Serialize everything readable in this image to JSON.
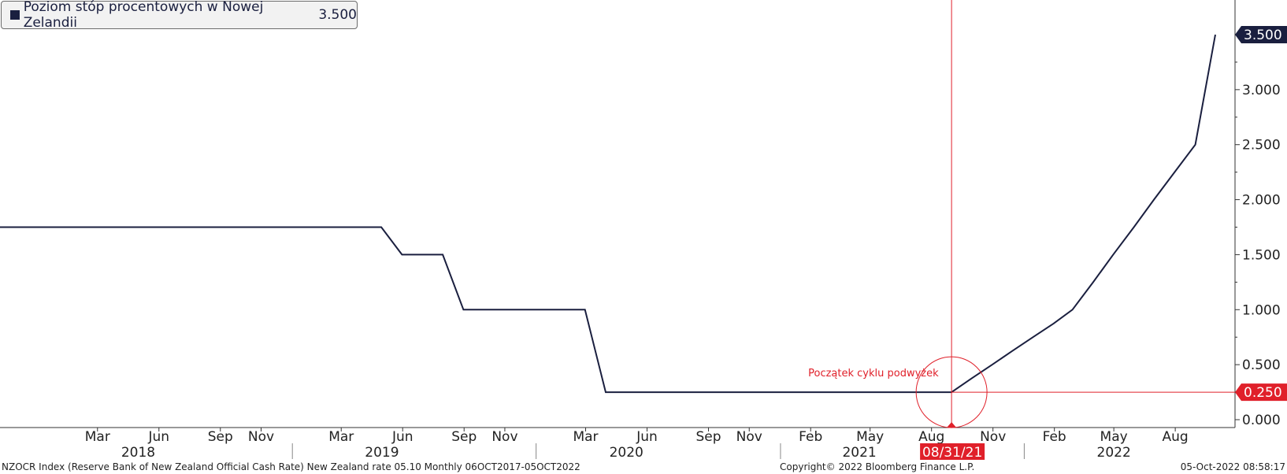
{
  "legend": {
    "label": "Poziom stóp procentowych w Nowej Zelandii",
    "value": "3.500"
  },
  "annotation": {
    "text": "Początek cyklu podwyżek",
    "date_label": "08/31/21",
    "value_label": "0.250",
    "x": "2021-08-31",
    "y": 0.25
  },
  "last_value_label": "3.500",
  "footer": {
    "left": "NZOCR Index (Reserve Bank of New Zealand Official Cash Rate) New Zealand rate 05.10  Monthly 06OCT2017-05OCT2022",
    "center": "Copyright© 2022 Bloomberg Finance L.P.",
    "right": "05-Oct-2022 08:58:17"
  },
  "colors": {
    "series": "#1a1f3f",
    "annotation": "#e0202a",
    "axis": "#333333"
  },
  "chart_data": {
    "type": "line",
    "series": [
      {
        "name": "Poziom stóp procentowych w Nowej Zelandii",
        "x": [
          "2017-10-06",
          "2019-04-30",
          "2019-05-31",
          "2019-06-30",
          "2019-07-31",
          "2019-08-31",
          "2020-02-29",
          "2020-03-31",
          "2021-08-31",
          "2021-09-30",
          "2021-10-31",
          "2021-11-30",
          "2021-12-31",
          "2022-01-31",
          "2022-02-28",
          "2022-03-31",
          "2022-04-30",
          "2022-05-31",
          "2022-06-30",
          "2022-07-31",
          "2022-08-31",
          "2022-09-30"
        ],
        "y": [
          1.75,
          1.75,
          1.5,
          1.5,
          1.5,
          1.0,
          1.0,
          0.25,
          0.25,
          0.375,
          0.5,
          0.625,
          0.75,
          0.875,
          1.0,
          1.25,
          1.5,
          1.75,
          2.0,
          2.25,
          2.5,
          3.5
        ]
      }
    ],
    "y_ticks": [
      "0.000",
      "0.500",
      "1.000",
      "1.500",
      "2.000",
      "2.500",
      "3.000"
    ],
    "ylim": [
      0.0,
      3.5
    ],
    "x_month_ticks": [
      {
        "label": "Mar",
        "date": "2018-03-01"
      },
      {
        "label": "Jun",
        "date": "2018-06-01"
      },
      {
        "label": "Sep",
        "date": "2018-09-01"
      },
      {
        "label": "Nov",
        "date": "2018-11-01"
      },
      {
        "label": "Mar",
        "date": "2019-03-01"
      },
      {
        "label": "Jun",
        "date": "2019-06-01"
      },
      {
        "label": "Sep",
        "date": "2019-09-01"
      },
      {
        "label": "Nov",
        "date": "2019-11-01"
      },
      {
        "label": "Mar",
        "date": "2020-03-01"
      },
      {
        "label": "Jun",
        "date": "2020-06-01"
      },
      {
        "label": "Sep",
        "date": "2020-09-01"
      },
      {
        "label": "Nov",
        "date": "2020-11-01"
      },
      {
        "label": "Feb",
        "date": "2021-02-01"
      },
      {
        "label": "May",
        "date": "2021-05-01"
      },
      {
        "label": "Aug",
        "date": "2021-08-01"
      },
      {
        "label": "Nov",
        "date": "2021-11-01"
      },
      {
        "label": "Feb",
        "date": "2022-02-01"
      },
      {
        "label": "May",
        "date": "2022-05-01"
      },
      {
        "label": "Aug",
        "date": "2022-08-01"
      }
    ],
    "x_year_labels": [
      {
        "label": "2018",
        "date": "2018-05-01"
      },
      {
        "label": "2019",
        "date": "2019-05-01"
      },
      {
        "label": "2020",
        "date": "2020-05-01"
      },
      {
        "label": "2021",
        "date": "2021-04-15"
      },
      {
        "label": "2022",
        "date": "2022-05-01"
      }
    ],
    "x_year_separators": [
      "2019-01-01",
      "2020-01-01",
      "2021-01-01",
      "2022-01-01"
    ],
    "xlim": [
      "2017-10-06",
      "2022-10-31"
    ],
    "grid": false,
    "legend": "top-left"
  }
}
